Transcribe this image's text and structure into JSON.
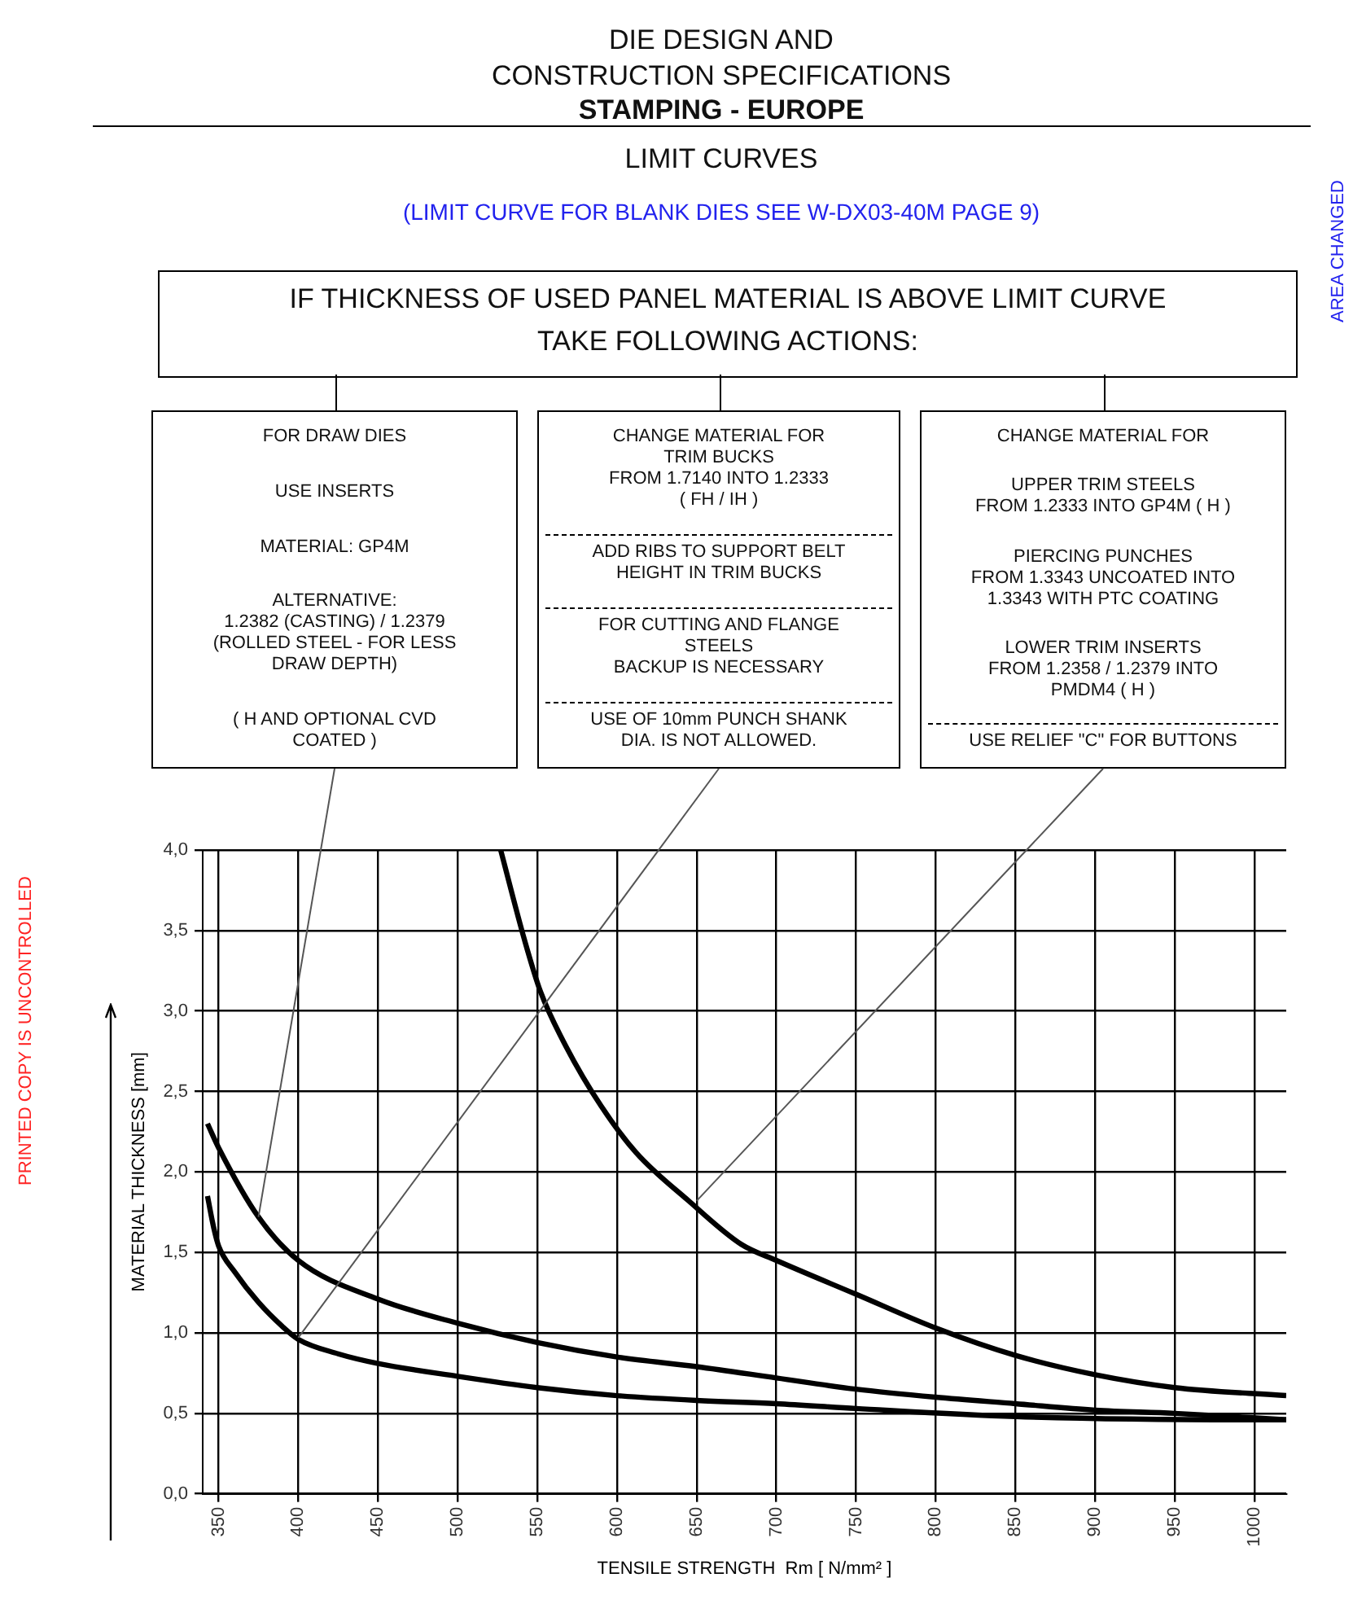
{
  "chart_data": {
    "type": "line",
    "title": "DIE DESIGN AND\nCONSTRUCTION SPECIFICATIONS",
    "subtitle": "STAMPING - EUROPE",
    "xlabel": "TENSILE STRENGTH  Rm [ N/mm² ]",
    "ylabel": "MATERIAL THICKNESS [mm]",
    "xlim": [
      340,
      1020
    ],
    "ylim": [
      0,
      4
    ],
    "xticks": [
      350,
      400,
      450,
      500,
      550,
      600,
      650,
      700,
      750,
      800,
      850,
      900,
      950,
      1000
    ],
    "yticks": [
      {
        "value": 0,
        "label": "0,0"
      },
      {
        "value": 0.5,
        "label": "0,5"
      },
      {
        "value": 1,
        "label": "1,0"
      },
      {
        "value": 1.5,
        "label": "1,5"
      },
      {
        "value": 2,
        "label": "2,0"
      },
      {
        "value": 2.5,
        "label": "2,5"
      },
      {
        "value": 3,
        "label": "3,0"
      },
      {
        "value": 3.5,
        "label": "3,5"
      },
      {
        "value": 4,
        "label": "4,0"
      }
    ],
    "grid": true,
    "legend": false,
    "marker": "none",
    "line_style": "solid",
    "series": [
      {
        "color": "#000000",
        "x": [
          343,
          347,
          350,
          360,
          375,
          390,
          400,
          425,
          450,
          500,
          550,
          600,
          650,
          700,
          750,
          850,
          1000,
          1020
        ],
        "values": [
          1.85,
          1.65,
          1.54,
          1.38,
          1.19,
          1.04,
          0.96,
          0.87,
          0.81,
          0.73,
          0.66,
          0.61,
          0.58,
          0.56,
          0.53,
          0.48,
          0.46,
          0.46
        ]
      },
      {
        "color": "#000000",
        "x": [
          343,
          350,
          375,
          400,
          450,
          500,
          550,
          600,
          650,
          700,
          750,
          800,
          850,
          900,
          950,
          1020
        ],
        "values": [
          2.3,
          2.15,
          1.72,
          1.45,
          1.21,
          1.06,
          0.94,
          0.85,
          0.79,
          0.72,
          0.65,
          0.6,
          0.56,
          0.52,
          0.5,
          0.46
        ]
      },
      {
        "color": "#000000",
        "x": [
          527,
          542,
          552,
          568,
          590,
          612,
          645,
          678,
          700,
          750,
          800,
          850,
          900,
          950,
          1020
        ],
        "values": [
          4.0,
          3.44,
          3.12,
          2.78,
          2.41,
          2.12,
          1.82,
          1.55,
          1.45,
          1.24,
          1.03,
          0.86,
          0.74,
          0.66,
          0.61
        ]
      }
    ],
    "annotations": [
      "LIMIT CURVES",
      "(LIMIT CURVE FOR BLANK DIES SEE W-DX03-40M PAGE 9)",
      "IF THICKNESS OF USED PANEL MATERIAL IS ABOVE LIMIT CURVE\nTAKE FOLLOWING ACTIONS:",
      "AREA CHANGED",
      "PRINTED COPY IS UNCONTROLLED",
      "FOR DRAW DIES",
      "USE INSERTS",
      "MATERIAL: GP4M",
      "ALTERNATIVE:\n1.2382 (CASTING) / 1.2379\n(ROLLED STEEL - FOR LESS\nDRAW DEPTH)",
      {
        "text": "( H AND OPTIONAL CVD\nCOATED )",
        "x": 375,
        "y": 1.72
      },
      "CHANGE MATERIAL FOR\nTRIM BUCKS\nFROM 1.7140 INTO 1.2333\n( FH / IH )",
      "ADD RIBS TO SUPPORT BELT\nHEIGHT IN TRIM BUCKS",
      "FOR CUTTING AND FLANGE\nSTEELS\nBACKUP IS NECESSARY",
      {
        "text": "USE OF 10mm PUNCH SHANK\nDIA. IS NOT ALLOWED.",
        "x": 400,
        "y": 0.97
      },
      "CHANGE MATERIAL FOR",
      "UPPER TRIM STEELS\nFROM 1.2333 INTO GP4M ( H )",
      "PIERCING PUNCHES\nFROM 1.3343 UNCOATED INTO\n1.3343 WITH PTC COATING",
      "LOWER TRIM INSERTS\nFROM 1.2358 / 1.2379 INTO\nPMDM4 ( H )",
      {
        "text": "USE RELIEF \"C\" FOR BUTTONS",
        "x": 650,
        "y": 1.82
      }
    ]
  }
}
